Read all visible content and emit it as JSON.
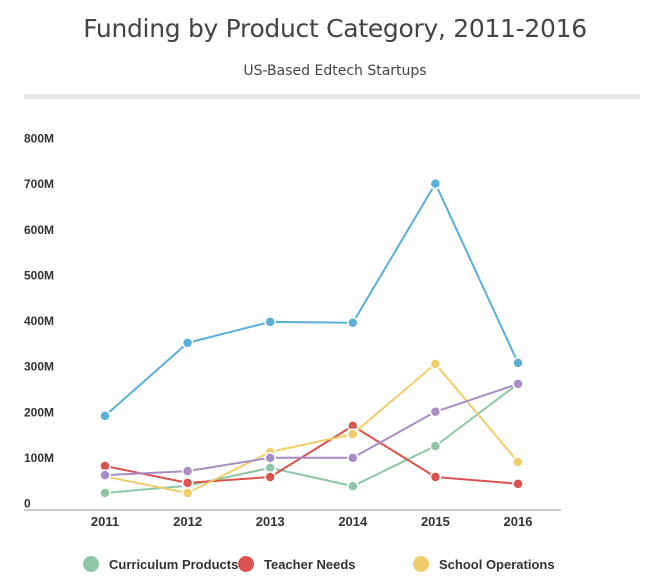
{
  "chart_data": {
    "type": "line",
    "title": "Funding by Product Category, 2011-2016",
    "subtitle": "US-Based Edtech Startups",
    "xlabel": "",
    "ylabel": "",
    "categories": [
      "2011",
      "2012",
      "2013",
      "2014",
      "2015",
      "2016"
    ],
    "ylim": [
      0,
      800
    ],
    "yticks": [
      0,
      100,
      200,
      300,
      400,
      500,
      600,
      700,
      800
    ],
    "ytick_labels": [
      "0",
      "100M",
      "200M",
      "300M",
      "400M",
      "500M",
      "600M",
      "700M",
      "800M"
    ],
    "grid": false,
    "legend_position": "bottom",
    "series": [
      {
        "name": "Curriculum Products",
        "color": "#8fc6a6",
        "in_legend": true,
        "values": [
          22,
          38,
          77,
          37,
          125,
          261
        ]
      },
      {
        "name": "Teacher Needs",
        "color": "#d9534f",
        "in_legend": true,
        "values": [
          81,
          44,
          57,
          169,
          57,
          42
        ]
      },
      {
        "name": "School Operations",
        "color": "#f0cd6b",
        "in_legend": true,
        "values": [
          58,
          22,
          112,
          151,
          305,
          90
        ]
      },
      {
        "name": "",
        "color": "#a98cc5",
        "in_legend": false,
        "values": [
          61,
          70,
          99,
          99,
          200,
          261
        ]
      },
      {
        "name": "",
        "color": "#5aafd9",
        "in_legend": false,
        "values": [
          191,
          351,
          397,
          395,
          700,
          307
        ]
      }
    ]
  }
}
